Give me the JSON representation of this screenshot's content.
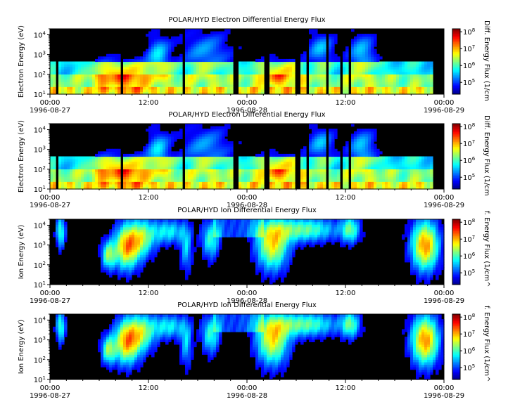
{
  "chart_data": [
    {
      "type": "heatmap",
      "title": "POLAR/HYD  Electron Differential Energy Flux",
      "ylabel": "Electron Energy (eV)",
      "zlabel": "Diff. Energy Flux (1/cm",
      "yscale": "log",
      "ylim": [
        10,
        20000
      ],
      "xlim": [
        "1996-08-27 00:00",
        "1996-08-29 00:00"
      ],
      "x_ticks": [
        "00:00",
        "12:00",
        "00:00",
        "12:00",
        "00:00"
      ],
      "x_date_labels": [
        "1996-08-27",
        "1996-08-28",
        "1996-08-29"
      ],
      "y_ticks": [
        "10^1",
        "10^2",
        "10^3",
        "10^4"
      ],
      "z_ticks": [
        "10^5",
        "10^6",
        "10^7",
        "10^8"
      ],
      "zlim": [
        20000,
        150000000
      ]
    },
    {
      "type": "heatmap",
      "title": "POLAR/HYD  Electron Differential Energy Flux",
      "ylabel": "Electron Energy (eV)",
      "zlabel": "Diff. Energy Flux (1/cm",
      "yscale": "log",
      "ylim": [
        10,
        20000
      ],
      "xlim": [
        "1996-08-27 00:00",
        "1996-08-29 00:00"
      ],
      "x_ticks": [
        "00:00",
        "12:00",
        "00:00",
        "12:00",
        "00:00"
      ],
      "x_date_labels": [
        "1996-08-27",
        "1996-08-28",
        "1996-08-29"
      ],
      "y_ticks": [
        "10^1",
        "10^2",
        "10^3",
        "10^4"
      ],
      "z_ticks": [
        "10^5",
        "10^6",
        "10^7",
        "10^8"
      ],
      "zlim": [
        20000,
        150000000
      ]
    },
    {
      "type": "heatmap",
      "title": "POLAR/HYD  Ion Differential Energy Flux",
      "ylabel": "Ion Energy (eV)",
      "zlabel": "f. Energy Flux (1/cm^",
      "yscale": "log",
      "ylim": [
        10,
        20000
      ],
      "xlim": [
        "1996-08-27 00:00",
        "1996-08-29 00:00"
      ],
      "x_ticks": [
        "00:00",
        "12:00",
        "00:00",
        "12:00",
        "00:00"
      ],
      "x_date_labels": [
        "1996-08-27",
        "1996-08-28",
        "1996-08-29"
      ],
      "y_ticks": [
        "10^1",
        "10^2",
        "10^3",
        "10^4"
      ],
      "z_ticks": [
        "10^5",
        "10^6",
        "10^7",
        "10^8"
      ],
      "zlim": [
        20000,
        150000000
      ]
    },
    {
      "type": "heatmap",
      "title": "POLAR/HYD  Ion Differential Energy Flux",
      "ylabel": "Ion Energy (eV)",
      "zlabel": "f. Energy Flux (1/cm^",
      "yscale": "log",
      "ylim": [
        10,
        20000
      ],
      "xlim": [
        "1996-08-27 00:00",
        "1996-08-29 00:00"
      ],
      "x_ticks": [
        "00:00",
        "12:00",
        "00:00",
        "12:00",
        "00:00"
      ],
      "x_date_labels": [
        "1996-08-27",
        "1996-08-28",
        "1996-08-29"
      ],
      "y_ticks": [
        "10^1",
        "10^2",
        "10^3",
        "10^4"
      ],
      "z_ticks": [
        "10^5",
        "10^6",
        "10^7",
        "10^8"
      ],
      "zlim": [
        20000,
        150000000
      ]
    }
  ]
}
